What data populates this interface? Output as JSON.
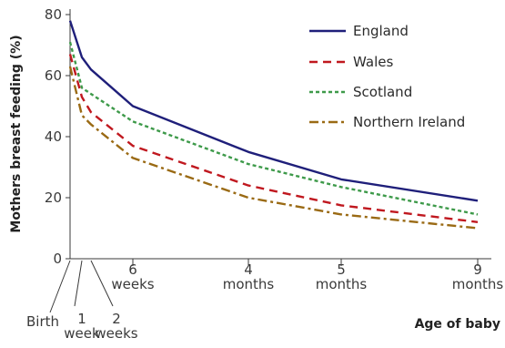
{
  "chart_data": {
    "type": "line",
    "ylabel": "Mothers breast feeding (%)",
    "xlabel": "Age of baby",
    "ylim": [
      0,
      80
    ],
    "yticks": [
      0,
      20,
      40,
      60,
      80
    ],
    "x_ticks": [
      {
        "id": "birth",
        "label": [
          "Birth"
        ]
      },
      {
        "id": "1w",
        "label": [
          "1",
          "week"
        ]
      },
      {
        "id": "2w",
        "label": [
          "2",
          "weeks"
        ]
      },
      {
        "id": "6w",
        "label": [
          "6",
          "weeks"
        ]
      },
      {
        "id": "4m",
        "label": [
          "4",
          "months"
        ]
      },
      {
        "id": "5m",
        "label": [
          "5",
          "months"
        ]
      },
      {
        "id": "9m",
        "label": [
          "9",
          "months"
        ]
      }
    ],
    "legend_position": "top-right",
    "grid": false,
    "series": [
      {
        "name": "England",
        "color": "#1f1f7a",
        "dash": "solid",
        "values": [
          78,
          66,
          62,
          50,
          35,
          26,
          19
        ]
      },
      {
        "name": "Wales",
        "color": "#c0181f",
        "dash": "dashed",
        "values": [
          67,
          53,
          48,
          37,
          24,
          17.5,
          12
        ]
      },
      {
        "name": "Scotland",
        "color": "#3e9a4a",
        "dash": "dotted",
        "values": [
          71,
          56,
          54,
          45,
          31,
          23.5,
          14.5
        ]
      },
      {
        "name": "Northern Ireland",
        "color": "#9a6a14",
        "dash": "dashdot",
        "values": [
          63,
          47,
          44,
          33,
          20,
          14.5,
          10
        ]
      }
    ]
  }
}
